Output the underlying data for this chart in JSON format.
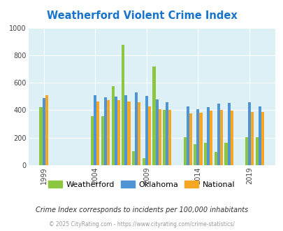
{
  "title": "Weatherford Violent Crime Index",
  "years": [
    1999,
    2004,
    2005,
    2006,
    2007,
    2008,
    2009,
    2010,
    2011,
    2013,
    2014,
    2015,
    2016,
    2017,
    2019,
    2020
  ],
  "weatherford": [
    420,
    355,
    355,
    575,
    875,
    100,
    50,
    720,
    400,
    205,
    155,
    165,
    95,
    165,
    205,
    205
  ],
  "oklahoma": [
    490,
    510,
    495,
    500,
    510,
    530,
    505,
    480,
    460,
    430,
    405,
    425,
    450,
    455,
    460,
    430
  ],
  "national": [
    510,
    465,
    475,
    475,
    465,
    460,
    430,
    405,
    400,
    375,
    380,
    395,
    400,
    395,
    385,
    385
  ],
  "color_weatherford": "#8DC641",
  "color_oklahoma": "#4F94D4",
  "color_national": "#F5A623",
  "bg_color": "#DCF0F5",
  "title_color": "#1874CD",
  "ylabel_ticks": [
    0,
    200,
    400,
    600,
    800,
    1000
  ],
  "x_tick_labels": [
    "1999",
    "2004",
    "2009",
    "2014",
    "2019"
  ],
  "x_tick_years": [
    1999,
    2004,
    2009,
    2014,
    2019
  ],
  "subtitle": "Crime Index corresponds to incidents per 100,000 inhabitants",
  "footer": "© 2025 CityRating.com - https://www.cityrating.com/crime-statistics/",
  "ylim": [
    0,
    1000
  ]
}
